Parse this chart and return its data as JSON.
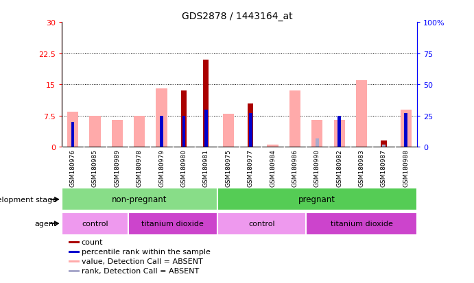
{
  "title": "GDS2878 / 1443164_at",
  "samples": [
    "GSM180976",
    "GSM180985",
    "GSM180989",
    "GSM180978",
    "GSM180979",
    "GSM180980",
    "GSM180981",
    "GSM180975",
    "GSM180977",
    "GSM180984",
    "GSM180986",
    "GSM180990",
    "GSM180982",
    "GSM180983",
    "GSM180987",
    "GSM180988"
  ],
  "count_values": [
    0,
    0,
    0,
    0,
    0,
    13.5,
    21.0,
    0,
    10.5,
    0,
    0,
    0,
    0,
    0,
    1.5,
    0
  ],
  "rank_values": [
    20,
    0,
    0,
    0,
    25,
    25,
    30,
    0,
    27,
    0,
    0,
    0,
    25,
    0,
    0,
    27
  ],
  "absent_value": [
    8.5,
    7.5,
    6.5,
    7.5,
    14.0,
    0,
    0,
    8.0,
    0,
    0.5,
    13.5,
    6.5,
    6.5,
    16.0,
    0,
    9.0
  ],
  "absent_rank": [
    0,
    0,
    0,
    0,
    0,
    0,
    0,
    0,
    0,
    0,
    0,
    6.5,
    6.5,
    0,
    2.0,
    7.5
  ],
  "ylim_left": [
    0,
    30
  ],
  "ylim_right": [
    0,
    100
  ],
  "yticks_left": [
    0,
    7.5,
    15,
    22.5,
    30
  ],
  "yticks_right": [
    0,
    25,
    50,
    75,
    100
  ],
  "ytick_labels_left": [
    "0",
    "7.5",
    "15",
    "22.5",
    "30"
  ],
  "ytick_labels_right": [
    "0",
    "25",
    "50",
    "75",
    "100%"
  ],
  "color_count": "#aa0000",
  "color_rank": "#0000cc",
  "color_absent_value": "#ffaaaa",
  "color_absent_rank": "#aaaacc",
  "groups": [
    {
      "label": "non-pregnant",
      "start": 0,
      "end": 7,
      "color": "#88dd88"
    },
    {
      "label": "pregnant",
      "start": 7,
      "end": 16,
      "color": "#55cc55"
    }
  ],
  "agents": [
    {
      "label": "control",
      "start": 0,
      "end": 3,
      "color": "#ee99ee"
    },
    {
      "label": "titanium dioxide",
      "start": 3,
      "end": 7,
      "color": "#cc44cc"
    },
    {
      "label": "control",
      "start": 7,
      "end": 11,
      "color": "#ee99ee"
    },
    {
      "label": "titanium dioxide",
      "start": 11,
      "end": 16,
      "color": "#cc44cc"
    }
  ],
  "dev_stage_label": "development stage",
  "agent_label": "agent",
  "legend_items": [
    {
      "label": "count",
      "color": "#aa0000"
    },
    {
      "label": "percentile rank within the sample",
      "color": "#0000cc"
    },
    {
      "label": "value, Detection Call = ABSENT",
      "color": "#ffaaaa"
    },
    {
      "label": "rank, Detection Call = ABSENT",
      "color": "#aaaacc"
    }
  ]
}
